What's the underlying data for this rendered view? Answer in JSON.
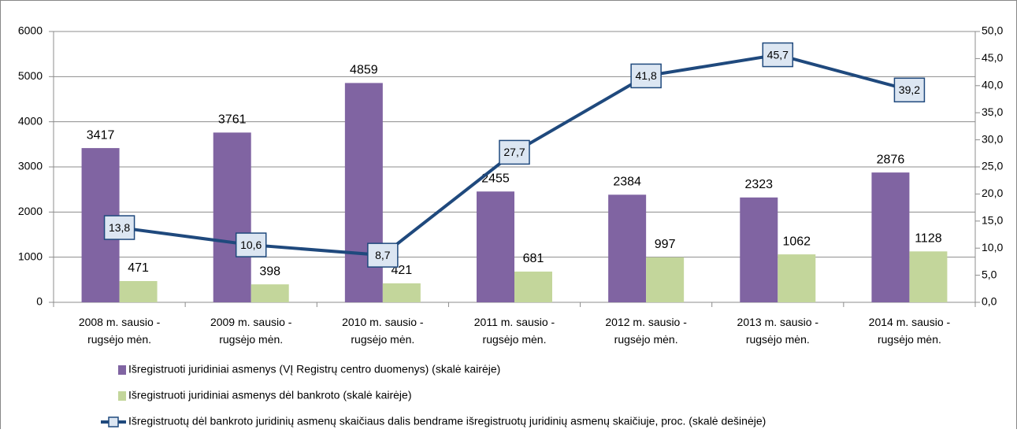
{
  "chart_data": {
    "type": "bar-line",
    "categories": [
      "2008 m. sausio - rugsėjo mėn.",
      "2009 m. sausio - rugsėjo mėn.",
      "2010 m. sausio - rugsėjo mėn.",
      "2011 m. sausio - rugsėjo mėn.",
      "2012 m. sausio - rugsėjo mėn.",
      "2013 m. sausio - rugsėjo mėn.",
      "2014 m. sausio - rugsėjo mėn."
    ],
    "series": [
      {
        "name": "Išregistruoti juridiniai asmenys (VĮ Registrų centro duomenys) (skalė kairėje)",
        "type": "bar",
        "color": "#8064a2",
        "values": [
          3417,
          3761,
          4859,
          2455,
          2384,
          2323,
          2876
        ]
      },
      {
        "name": "Išregistruoti juridiniai asmenys dėl bankroto (skalė kairėje)",
        "type": "bar",
        "color": "#c3d69b",
        "values": [
          471,
          398,
          421,
          681,
          997,
          1062,
          1128
        ]
      },
      {
        "name": "Išregistruotų dėl bankroto juridinių asmenų skaičiaus dalis bendrame išregistruotų juridinių asmenų skaičiuje, proc. (skalė dešinėje)",
        "type": "line",
        "axis": "y2",
        "color": "#1f497d",
        "values": [
          13.8,
          10.6,
          8.7,
          27.7,
          41.8,
          45.7,
          39.2
        ],
        "value_labels": [
          "13,8",
          "10,6",
          "8,7",
          "27,7",
          "41,8",
          "45,7",
          "39,2"
        ]
      }
    ],
    "ylim": [
      0,
      6000
    ],
    "yticks": [
      0,
      1000,
      2000,
      3000,
      4000,
      5000,
      6000
    ],
    "y2lim": [
      0,
      50
    ],
    "y2ticks": [
      {
        "value": 0,
        "label": "0,0"
      },
      {
        "value": 5,
        "label": "5,0"
      },
      {
        "value": 10,
        "label": "10,0"
      },
      {
        "value": 15,
        "label": "15,0"
      },
      {
        "value": 20,
        "label": "20,0"
      },
      {
        "value": 25,
        "label": "25,0"
      },
      {
        "value": 30,
        "label": "30,0"
      },
      {
        "value": 35,
        "label": "35,0"
      },
      {
        "value": 40,
        "label": "40,0"
      },
      {
        "value": 45,
        "label": "45,0"
      },
      {
        "value": 50,
        "label": "50,0"
      }
    ],
    "grid": true,
    "legend": "bottom"
  }
}
